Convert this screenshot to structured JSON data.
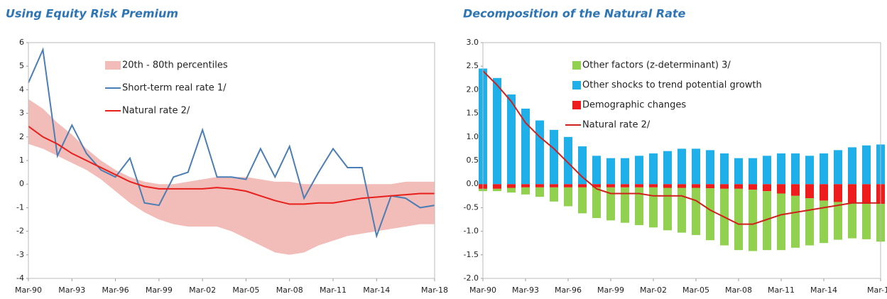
{
  "chart_data": [
    {
      "type": "line",
      "title": "Using Equity Risk Premium",
      "x": [
        1990,
        1991,
        1992,
        1993,
        1994,
        1995,
        1996,
        1997,
        1998,
        1999,
        2000,
        2001,
        2002,
        2003,
        2004,
        2005,
        2006,
        2007,
        2008,
        2009,
        2010,
        2011,
        2012,
        2013,
        2014,
        2015,
        2016,
        2017,
        2018
      ],
      "xlim": [
        1990,
        2018
      ],
      "xticks": [
        {
          "value": 1990,
          "label": "Mar-90"
        },
        {
          "value": 1993,
          "label": "Mar-93"
        },
        {
          "value": 1996,
          "label": "Mar-96"
        },
        {
          "value": 1999,
          "label": "Mar-99"
        },
        {
          "value": 2002,
          "label": "Mar-02"
        },
        {
          "value": 2005,
          "label": "Mar-05"
        },
        {
          "value": 2008,
          "label": "Mar-08"
        },
        {
          "value": 2011,
          "label": "Mar-11"
        },
        {
          "value": 2014,
          "label": "Mar-14"
        },
        {
          "value": 2018,
          "label": "Mar-18"
        }
      ],
      "ylim": [
        -4,
        6
      ],
      "yticks": [
        -4,
        -3,
        -2,
        -1,
        0,
        1,
        2,
        3,
        4,
        5,
        6
      ],
      "series": [
        {
          "name": "20th - 80th percentiles",
          "type": "band",
          "color": "#f2bcb8",
          "upper": [
            3.6,
            3.2,
            2.6,
            2.1,
            1.5,
            1.0,
            0.6,
            0.3,
            0.1,
            0.0,
            0.0,
            0.1,
            0.2,
            0.3,
            0.3,
            0.3,
            0.2,
            0.1,
            0.1,
            0.0,
            0.0,
            0.0,
            0.0,
            0.0,
            0.0,
            0.0,
            0.1,
            0.1,
            0.1
          ],
          "lower": [
            1.7,
            1.5,
            1.2,
            0.9,
            0.6,
            0.2,
            -0.3,
            -0.8,
            -1.2,
            -1.5,
            -1.7,
            -1.8,
            -1.8,
            -1.8,
            -2.0,
            -2.3,
            -2.6,
            -2.9,
            -3.0,
            -2.9,
            -2.6,
            -2.4,
            -2.2,
            -2.1,
            -2.0,
            -1.9,
            -1.8,
            -1.7,
            -1.7
          ]
        },
        {
          "name": "Short-term real rate 1/",
          "type": "line",
          "color": "#4a7eb4",
          "values": [
            4.3,
            5.7,
            1.2,
            2.5,
            1.3,
            0.6,
            0.3,
            1.1,
            -0.8,
            -0.9,
            0.3,
            0.5,
            2.3,
            0.3,
            0.3,
            0.2,
            1.5,
            0.3,
            1.6,
            -0.6,
            0.5,
            1.5,
            0.7,
            0.7,
            -2.2,
            -0.5,
            -0.6,
            -1.0,
            -0.9
          ]
        },
        {
          "name": "Natural rate 2/",
          "type": "line",
          "color": "#e8201c",
          "values": [
            2.45,
            2.0,
            1.7,
            1.3,
            1.0,
            0.7,
            0.4,
            0.1,
            -0.1,
            -0.2,
            -0.2,
            -0.2,
            -0.2,
            -0.15,
            -0.2,
            -0.3,
            -0.5,
            -0.7,
            -0.85,
            -0.85,
            -0.8,
            -0.8,
            -0.7,
            -0.6,
            -0.55,
            -0.5,
            -0.45,
            -0.4,
            -0.4
          ]
        }
      ]
    },
    {
      "type": "bar",
      "title": "Decomposition of the Natural Rate",
      "x": [
        1990,
        1991,
        1992,
        1993,
        1994,
        1995,
        1996,
        1997,
        1998,
        1999,
        2000,
        2001,
        2002,
        2003,
        2004,
        2005,
        2006,
        2007,
        2008,
        2009,
        2010,
        2011,
        2012,
        2013,
        2014,
        2015,
        2016,
        2017,
        2018
      ],
      "xlim": [
        1990,
        2018
      ],
      "xticks": [
        {
          "value": 1990,
          "label": "Mar-90"
        },
        {
          "value": 1993,
          "label": "Mar-93"
        },
        {
          "value": 1996,
          "label": "Mar-96"
        },
        {
          "value": 1999,
          "label": "Mar-99"
        },
        {
          "value": 2002,
          "label": "Mar-02"
        },
        {
          "value": 2005,
          "label": "Mar-05"
        },
        {
          "value": 2008,
          "label": "Mar-08"
        },
        {
          "value": 2011,
          "label": "Mar-11"
        },
        {
          "value": 2014,
          "label": "Mar-14"
        },
        {
          "value": 2018,
          "label": "Mar-18"
        }
      ],
      "ylim": [
        -2,
        3
      ],
      "yticks": [
        {
          "value": -2,
          "label": "-2.0"
        },
        {
          "value": -1.5,
          "label": "-1.5"
        },
        {
          "value": -1,
          "label": "-1.0"
        },
        {
          "value": -0.5,
          "label": "-0.5"
        },
        {
          "value": 0,
          "label": "0.0"
        },
        {
          "value": 0.5,
          "label": "0.5"
        },
        {
          "value": 1,
          "label": "1.0"
        },
        {
          "value": 1.5,
          "label": "1.5"
        },
        {
          "value": 2,
          "label": "2.0"
        },
        {
          "value": 2.5,
          "label": "2.5"
        },
        {
          "value": 3,
          "label": "3.0"
        }
      ],
      "series": [
        {
          "name": "Other factors (z-determinant) 3/",
          "type": "bar",
          "color": "#92d050",
          "values": [
            -0.05,
            -0.05,
            -0.1,
            -0.15,
            -0.2,
            -0.3,
            -0.4,
            -0.55,
            -0.65,
            -0.7,
            -0.75,
            -0.8,
            -0.85,
            -0.9,
            -0.95,
            -1.0,
            -1.1,
            -1.2,
            -1.3,
            -1.3,
            -1.25,
            -1.2,
            -1.1,
            -1.0,
            -0.9,
            -0.8,
            -0.75,
            -0.75,
            -0.8
          ]
        },
        {
          "name": "Other shocks to trend potential growth",
          "type": "bar",
          "color": "#1fb0ea",
          "values": [
            2.45,
            2.25,
            1.9,
            1.6,
            1.35,
            1.15,
            1.0,
            0.8,
            0.6,
            0.55,
            0.55,
            0.6,
            0.65,
            0.7,
            0.75,
            0.75,
            0.72,
            0.65,
            0.55,
            0.55,
            0.6,
            0.65,
            0.65,
            0.6,
            0.65,
            0.72,
            0.78,
            0.82,
            0.84
          ]
        },
        {
          "name": "Demographic changes",
          "type": "bar",
          "color": "#ee1c1c",
          "values": [
            -0.1,
            -0.1,
            -0.08,
            -0.07,
            -0.07,
            -0.07,
            -0.07,
            -0.07,
            -0.07,
            -0.07,
            -0.07,
            -0.07,
            -0.07,
            -0.08,
            -0.08,
            -0.08,
            -0.09,
            -0.1,
            -0.1,
            -0.12,
            -0.15,
            -0.2,
            -0.25,
            -0.3,
            -0.35,
            -0.38,
            -0.4,
            -0.42,
            -0.42
          ]
        },
        {
          "name": "Natural rate 2/",
          "type": "line",
          "color": "#d0201c",
          "values": [
            2.4,
            2.1,
            1.75,
            1.3,
            1.0,
            0.75,
            0.45,
            0.15,
            -0.1,
            -0.2,
            -0.2,
            -0.2,
            -0.25,
            -0.25,
            -0.25,
            -0.35,
            -0.55,
            -0.7,
            -0.85,
            -0.85,
            -0.75,
            -0.65,
            -0.6,
            -0.55,
            -0.5,
            -0.45,
            -0.4,
            -0.4,
            -0.4
          ]
        }
      ]
    }
  ]
}
